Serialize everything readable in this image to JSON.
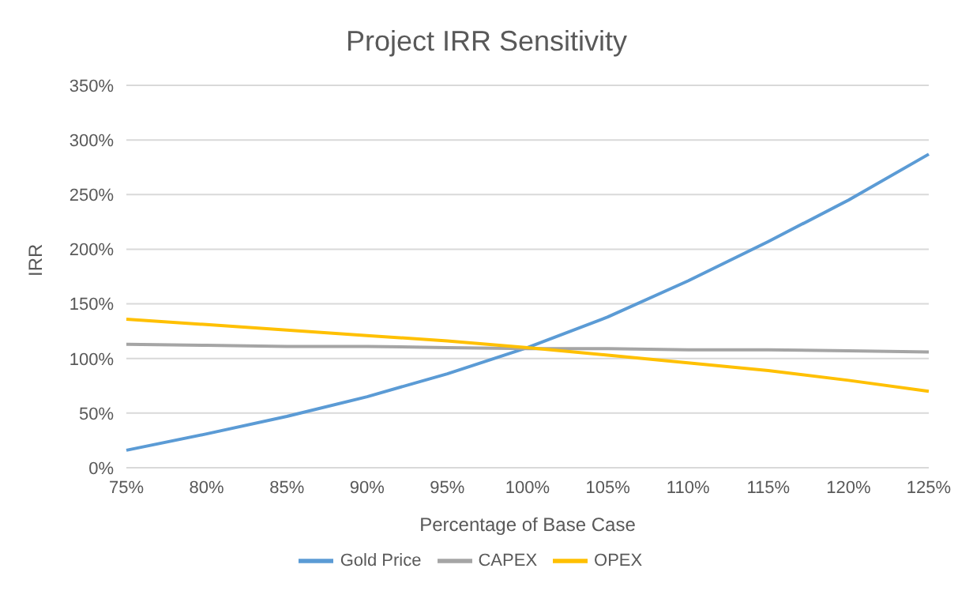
{
  "chart_data": {
    "type": "line",
    "title": "Project IRR Sensitivity",
    "xlabel": "Percentage of Base Case",
    "ylabel": "IRR",
    "categories": [
      "75%",
      "80%",
      "85%",
      "90%",
      "95%",
      "100%",
      "105%",
      "110%",
      "115%",
      "120%",
      "125%"
    ],
    "series": [
      {
        "name": "Gold Price",
        "color": "#5b9bd5",
        "values": [
          16,
          31,
          47,
          65,
          86,
          110,
          138,
          171,
          207,
          245,
          287
        ]
      },
      {
        "name": "CAPEX",
        "color": "#a5a5a5",
        "values": [
          113,
          112,
          111,
          111,
          110,
          109,
          109,
          108,
          108,
          107,
          106
        ]
      },
      {
        "name": "OPEX",
        "color": "#ffc000",
        "values": [
          136,
          131,
          126,
          121,
          116,
          110,
          103,
          96,
          89,
          80,
          70
        ]
      }
    ],
    "ylim": [
      0,
      350
    ],
    "yticks": [
      {
        "value": 0,
        "label": "0%"
      },
      {
        "value": 50,
        "label": "50%"
      },
      {
        "value": 100,
        "label": "100%"
      },
      {
        "value": 150,
        "label": "150%"
      },
      {
        "value": 200,
        "label": "200%"
      },
      {
        "value": 250,
        "label": "250%"
      },
      {
        "value": 300,
        "label": "300%"
      },
      {
        "value": 350,
        "label": "350%"
      }
    ],
    "grid": "y",
    "legend": "bottom",
    "marker": "none",
    "line_style": "solid"
  }
}
